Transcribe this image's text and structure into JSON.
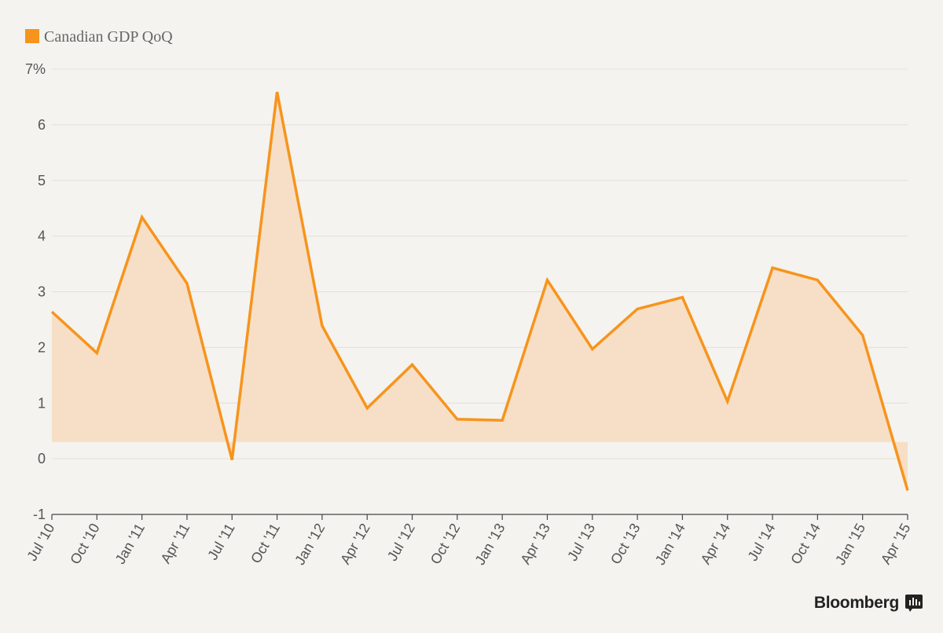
{
  "legend": {
    "label": "Canadian GDP QoQ",
    "color": "#f7941d"
  },
  "brand": {
    "name": "Bloomberg",
    "icon": "bloomberg-terminal-icon"
  },
  "chart_data": {
    "type": "area",
    "title": "",
    "xlabel": "",
    "ylabel": "",
    "ylim": [
      -1,
      7
    ],
    "grid": true,
    "legend_position": "top-left",
    "y_ticks": [
      "7%",
      "6",
      "5",
      "4",
      "3",
      "2",
      "1",
      "0",
      "-1"
    ],
    "y_tick_values": [
      7,
      6,
      5,
      4,
      3,
      2,
      1,
      0,
      -1
    ],
    "categories": [
      "Jul '10",
      "Oct '10",
      "Jan '11",
      "Apr '11",
      "Jul '11",
      "Oct '11",
      "Jan '12",
      "Apr '12",
      "Jul '12",
      "Oct '12",
      "Jan '13",
      "Apr '13",
      "Jul '13",
      "Oct '13",
      "Jan '14",
      "Apr '14",
      "Jul '14",
      "Oct '14",
      "Jan '15",
      "Apr '15"
    ],
    "series": [
      {
        "name": "Canadian GDP QoQ",
        "values": [
          2.64,
          1.9,
          4.34,
          3.15,
          -0.02,
          6.59,
          2.39,
          0.91,
          1.69,
          0.71,
          0.69,
          3.21,
          1.97,
          2.69,
          2.9,
          1.03,
          3.43,
          3.21,
          2.22,
          -0.57
        ]
      }
    ],
    "colors": {
      "line": "#f7941d",
      "fill": "#f6dfc6"
    }
  }
}
